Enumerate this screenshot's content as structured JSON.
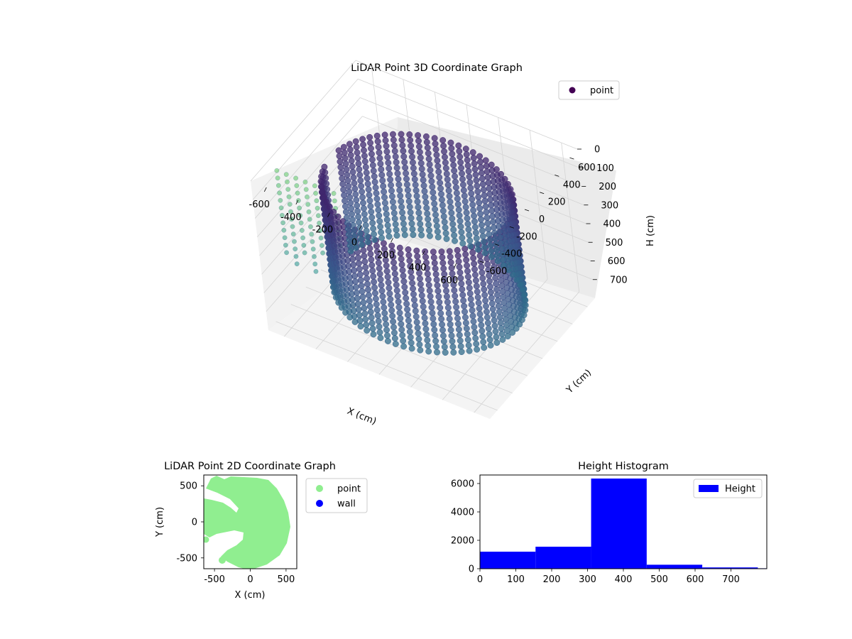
{
  "chart_data": [
    {
      "type": "scatter",
      "title": "LiDAR Point 3D Coordinate Graph",
      "xlabel": "X (cm)",
      "ylabel": "Y (cm)",
      "zlabel": "H (cm)",
      "projection": "3d",
      "legend": {
        "placement": "top-right",
        "entries": [
          "point"
        ]
      },
      "xlim": [
        -700,
        700
      ],
      "ylim": [
        -700,
        700
      ],
      "zlim": [
        800,
        0
      ],
      "x_ticks": [
        "-600",
        "-400",
        "-200",
        "0",
        "200",
        "400",
        "600"
      ],
      "y_ticks": [
        "-600",
        "-400",
        "-200",
        "0",
        "200",
        "400",
        "600"
      ],
      "z_ticks": [
        "0",
        "100",
        "200",
        "300",
        "400",
        "500",
        "600",
        "700"
      ],
      "grid": true,
      "colormap": "viridis (by height)",
      "series": [
        {
          "name": "point",
          "color": "#440154",
          "description_points": "ring of wall points, radius about 550 cm, heights 150 to 700 cm; sparse columns toward negative X",
          "ring": {
            "radius": 550,
            "h_min": 150,
            "h_max": 700,
            "center": [
              0,
              0
            ]
          },
          "sparse_columns": [
            {
              "x": -620,
              "y": -520,
              "h_min": 0,
              "h_max": 450
            },
            {
              "x": -560,
              "y": -520,
              "h_min": 0,
              "h_max": 480
            },
            {
              "x": -500,
              "y": -520,
              "h_min": 0,
              "h_max": 420
            },
            {
              "x": -440,
              "y": -520,
              "h_min": 0,
              "h_max": 500
            },
            {
              "x": -380,
              "y": -520,
              "h_min": 0,
              "h_max": 380
            },
            {
              "x": -320,
              "y": -520,
              "h_min": 0,
              "h_max": 350
            },
            {
              "x": -260,
              "y": -520,
              "h_min": 0,
              "h_max": 300
            }
          ]
        }
      ]
    },
    {
      "type": "scatter",
      "title": "LiDAR Point 2D Coordinate Graph",
      "xlabel": "X (cm)",
      "ylabel": "Y (cm)",
      "xlim": [
        -650,
        650
      ],
      "ylim": [
        -650,
        650
      ],
      "x_ticks": [
        -500,
        0,
        500
      ],
      "y_ticks": [
        500,
        0,
        -500
      ],
      "legend": {
        "placement": "right-outside",
        "entries": [
          "point",
          "wall"
        ]
      },
      "series": [
        {
          "name": "point",
          "color": "#90ee90"
        },
        {
          "name": "wall",
          "color": "#0000ff"
        }
      ]
    },
    {
      "type": "bar",
      "title": "Height Histogram",
      "legend": {
        "placement": "top-right",
        "entries": [
          "Height"
        ]
      },
      "xlim": [
        0,
        800
      ],
      "ylim": [
        0,
        6600
      ],
      "x_ticks": [
        0,
        100,
        200,
        300,
        400,
        500,
        600,
        700
      ],
      "y_ticks": [
        0,
        2000,
        4000,
        6000
      ],
      "color": "#0000ff",
      "series": [
        {
          "name": "Height",
          "bins": [
            {
              "x0": 0,
              "x1": 155,
              "count": 1200
            },
            {
              "x0": 155,
              "x1": 310,
              "count": 1550
            },
            {
              "x0": 310,
              "x1": 465,
              "count": 6350
            },
            {
              "x0": 465,
              "x1": 620,
              "count": 280
            },
            {
              "x0": 620,
              "x1": 775,
              "count": 90
            },
            {
              "x0": 775,
              "x1": 800,
              "count": 30
            }
          ]
        }
      ]
    }
  ]
}
